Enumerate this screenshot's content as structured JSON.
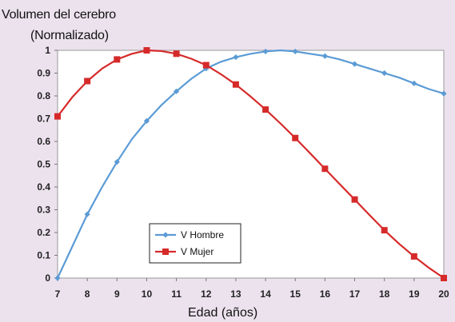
{
  "chart_data": {
    "type": "line",
    "title_line1": "Volumen del cerebro",
    "title_line2": "(Normalizado)",
    "xlabel": "Edad (años)",
    "ylabel": "",
    "x": [
      7,
      8,
      9,
      10,
      11,
      12,
      13,
      14,
      15,
      16,
      17,
      18,
      19,
      20
    ],
    "xlim": [
      7,
      20
    ],
    "ylim": [
      0,
      1
    ],
    "xticks": [
      "7",
      "8",
      "9",
      "10",
      "11",
      "12",
      "13",
      "14",
      "15",
      "16",
      "17",
      "18",
      "19",
      "20"
    ],
    "yticks": [
      "0",
      "0.1",
      "0.2",
      "0.3",
      "0.4",
      "0.5",
      "0.6",
      "0.7",
      "0.8",
      "0.9",
      "1"
    ],
    "grid": false,
    "legend_placement": "lower-center",
    "series": [
      {
        "name": "V  Hombre",
        "color": "#5b9bd5",
        "marker": "diamond",
        "values": [
          0.0,
          0.28,
          0.51,
          0.69,
          0.82,
          0.92,
          0.97,
          0.995,
          0.995,
          0.975,
          0.94,
          0.9,
          0.855,
          0.81
        ],
        "smooth_line": [
          [
            7,
            0.0
          ],
          [
            7.5,
            0.14
          ],
          [
            8,
            0.28
          ],
          [
            8.5,
            0.4
          ],
          [
            9,
            0.51
          ],
          [
            9.5,
            0.61
          ],
          [
            10,
            0.69
          ],
          [
            10.5,
            0.76
          ],
          [
            11,
            0.82
          ],
          [
            11.5,
            0.875
          ],
          [
            12,
            0.92
          ],
          [
            12.5,
            0.95
          ],
          [
            13,
            0.97
          ],
          [
            13.5,
            0.985
          ],
          [
            14,
            0.995
          ],
          [
            14.5,
            1.0
          ],
          [
            15,
            0.995
          ],
          [
            15.5,
            0.985
          ],
          [
            16,
            0.975
          ],
          [
            16.5,
            0.96
          ],
          [
            17,
            0.94
          ],
          [
            17.5,
            0.92
          ],
          [
            18,
            0.9
          ],
          [
            18.5,
            0.88
          ],
          [
            19,
            0.855
          ],
          [
            19.5,
            0.83
          ],
          [
            20,
            0.81
          ]
        ]
      },
      {
        "name": "V  Mujer",
        "color": "#d62a2a",
        "marker": "square",
        "values": [
          0.71,
          0.865,
          0.96,
          1.0,
          0.985,
          0.935,
          0.85,
          0.74,
          0.615,
          0.48,
          0.345,
          0.21,
          0.095,
          0.0
        ],
        "smooth_line": [
          [
            7,
            0.71
          ],
          [
            7.5,
            0.795
          ],
          [
            8,
            0.865
          ],
          [
            8.5,
            0.92
          ],
          [
            9,
            0.96
          ],
          [
            9.5,
            0.985
          ],
          [
            10,
            1.0
          ],
          [
            10.5,
            0.997
          ],
          [
            11,
            0.985
          ],
          [
            11.5,
            0.963
          ],
          [
            12,
            0.935
          ],
          [
            12.5,
            0.895
          ],
          [
            13,
            0.85
          ],
          [
            13.5,
            0.797
          ],
          [
            14,
            0.74
          ],
          [
            14.5,
            0.679
          ],
          [
            15,
            0.615
          ],
          [
            15.5,
            0.548
          ],
          [
            16,
            0.48
          ],
          [
            16.5,
            0.412
          ],
          [
            17,
            0.345
          ],
          [
            17.5,
            0.277
          ],
          [
            18,
            0.21
          ],
          [
            18.5,
            0.15
          ],
          [
            19,
            0.095
          ],
          [
            19.5,
            0.045
          ],
          [
            20,
            0.0
          ]
        ]
      }
    ]
  }
}
